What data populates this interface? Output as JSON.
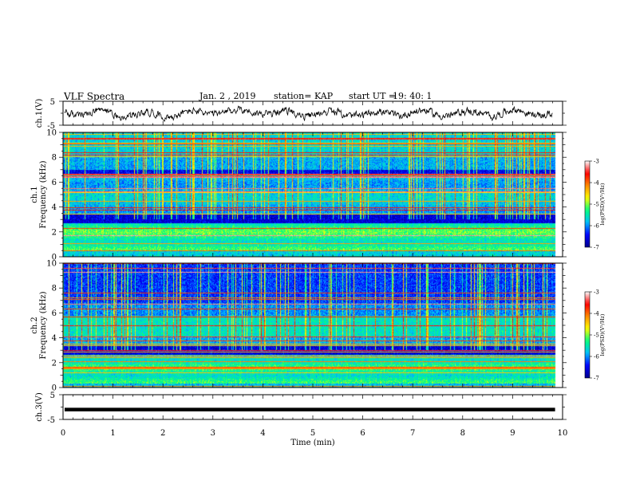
{
  "header": {
    "title": "VLF Spectra",
    "date": "Jan. 2 , 2019",
    "station": "station= KAP",
    "start": "start UT =",
    "start_time": "19: 40: 1"
  },
  "colors": {
    "spectrum": [
      "#00008b",
      "#0000ff",
      "#00bfff",
      "#00ff7f",
      "#ffff00",
      "#ff8c00",
      "#ff0000",
      "#ffffff"
    ],
    "trace": "#000000",
    "axis": "#000000"
  },
  "chart_data": [
    {
      "type": "line",
      "panel": "ch1-waveform",
      "ylabel": "ch.1(V)",
      "ylim": [
        -5,
        5
      ],
      "yticks": [
        "5",
        "-5"
      ],
      "xlim": [
        0,
        10
      ],
      "note_visible_only": true
    },
    {
      "type": "heatmap",
      "panel": "ch1-spectrogram",
      "ylabel_top": "ch.1",
      "ylabel": "Frequency (kHz)",
      "ylim": [
        0,
        10
      ],
      "yticks": [
        "0",
        "2",
        "4",
        "6",
        "8",
        "10"
      ],
      "xlim": [
        0,
        10
      ],
      "colorbar": {
        "label": "log(PSD)(V²/Hz)",
        "range": [
          -7,
          -3
        ],
        "ticks": [
          "-3",
          "-4",
          "-5",
          "-6",
          "-7"
        ]
      }
    },
    {
      "type": "heatmap",
      "panel": "ch2-spectrogram",
      "ylabel_top": "ch.2",
      "ylabel": "Frequency (kHz)",
      "ylim": [
        0,
        10
      ],
      "yticks": [
        "0",
        "2",
        "4",
        "6",
        "8",
        "10"
      ],
      "xlim": [
        0,
        10
      ],
      "colorbar": {
        "label": "log(PSD)(V²/Hz)",
        "range": [
          -7,
          -3
        ],
        "ticks": [
          "-3",
          "-4",
          "-5",
          "-6",
          "-7"
        ]
      }
    },
    {
      "type": "line",
      "panel": "ch3-waveform",
      "ylabel": "ch.3(V)",
      "ylim": [
        -5,
        5
      ],
      "yticks": [
        "5",
        "-5"
      ],
      "xlim": [
        0,
        10
      ],
      "constant_value": -1
    }
  ],
  "xaxis": {
    "label": "Time (min)",
    "ticks": [
      "0",
      "1",
      "2",
      "3",
      "4",
      "5",
      "6",
      "7",
      "8",
      "9",
      "10"
    ]
  }
}
